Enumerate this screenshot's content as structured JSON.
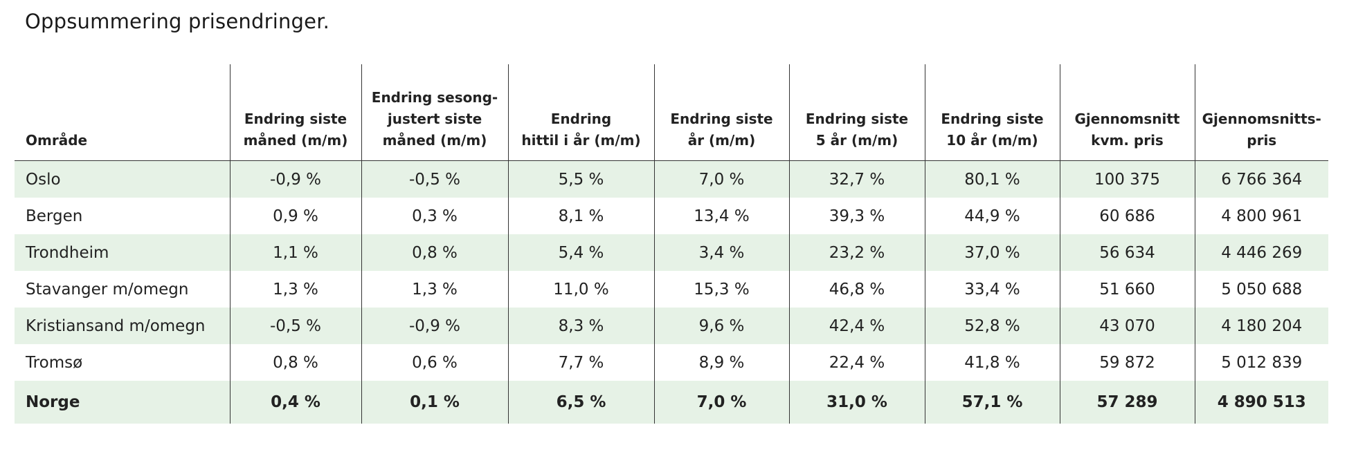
{
  "title": "Oppsummering prisendringer.",
  "columns": [
    "Område",
    "Endring siste\nmåned (m/m)",
    "Endring sesong-\njustert siste\nmåned (m/m)",
    "Endring\nhittil i år (m/m)",
    "Endring siste\når (m/m)",
    "Endring siste\n5 år (m/m)",
    "Endring siste\n10 år (m/m)",
    "Gjennomsnitt\nkvm. pris",
    "Gjennomsnitts-\npris"
  ],
  "rows": [
    [
      "Oslo",
      "-0,9 %",
      "-0,5 %",
      "5,5 %",
      "7,0 %",
      "32,7 %",
      "80,1 %",
      "100 375",
      "6 766 364"
    ],
    [
      "Bergen",
      "0,9 %",
      "0,3 %",
      "8,1 %",
      "13,4 %",
      "39,3 %",
      "44,9 %",
      "60 686",
      "4 800 961"
    ],
    [
      "Trondheim",
      "1,1 %",
      "0,8 %",
      "5,4 %",
      "3,4 %",
      "23,2 %",
      "37,0 %",
      "56 634",
      "4 446 269"
    ],
    [
      "Stavanger m/omegn",
      "1,3 %",
      "1,3 %",
      "11,0 %",
      "15,3 %",
      "46,8 %",
      "33,4 %",
      "51 660",
      "5 050 688"
    ],
    [
      "Kristiansand m/omegn",
      "-0,5 %",
      "-0,9 %",
      "8,3 %",
      "9,6 %",
      "42,4 %",
      "52,8 %",
      "43 070",
      "4 180 204"
    ],
    [
      "Tromsø",
      "0,8 %",
      "0,6 %",
      "7,7 %",
      "8,9 %",
      "22,4 %",
      "41,8 %",
      "59 872",
      "5 012 839"
    ]
  ],
  "total": [
    "Norge",
    "0,4 %",
    "0,1 %",
    "6,5 %",
    "7,0 %",
    "31,0 %",
    "57,1 %",
    "57 289",
    "4 890 513"
  ],
  "colors": {
    "stripe": "#e6f2e6",
    "rule": "#333333"
  }
}
